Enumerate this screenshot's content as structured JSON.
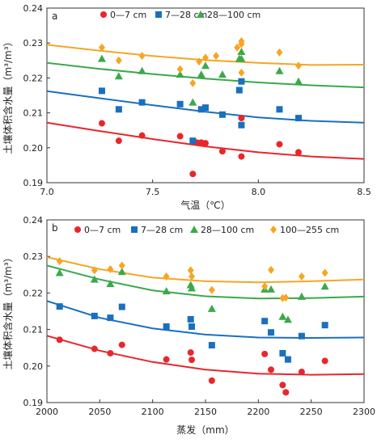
{
  "chart_data": [
    {
      "type": "scatter",
      "panel_label": "a",
      "xlabel": "气温（℃）",
      "ylabel": "土壤体积含水量（m³/m³）",
      "xlim": [
        7.0,
        8.5
      ],
      "ylim": [
        0.19,
        0.24
      ],
      "xticks": [
        "7.0",
        "7.5",
        "8.0",
        "8.5"
      ],
      "yticks": [
        "0.19",
        "0.20",
        "0.21",
        "0.22",
        "0.23",
        "0.24"
      ],
      "legend_position": "top-right",
      "series": [
        {
          "name": "0—7 cm",
          "marker": "circle",
          "color": "#e8262b",
          "points": [
            [
              7.26,
              0.207
            ],
            [
              7.34,
              0.202
            ],
            [
              7.45,
              0.2035
            ],
            [
              7.63,
              0.2033
            ],
            [
              7.71,
              0.2015
            ],
            [
              7.73,
              0.2015
            ],
            [
              7.75,
              0.2013
            ],
            [
              7.69,
              0.1925
            ],
            [
              7.83,
              0.199
            ],
            [
              7.92,
              0.2085
            ],
            [
              7.92,
              0.1975
            ],
            [
              8.1,
              0.201
            ],
            [
              8.19,
              0.1987
            ]
          ],
          "trend": [
            [
              7.0,
              0.2072
            ],
            [
              7.25,
              0.2048
            ],
            [
              7.5,
              0.2025
            ],
            [
              7.75,
              0.2004
            ],
            [
              8.0,
              0.1987
            ],
            [
              8.25,
              0.1975
            ],
            [
              8.5,
              0.1968
            ]
          ]
        },
        {
          "name": "7—28 cm",
          "marker": "square",
          "color": "#1a6fbf",
          "points": [
            [
              7.26,
              0.2163
            ],
            [
              7.34,
              0.211
            ],
            [
              7.45,
              0.213
            ],
            [
              7.63,
              0.2125
            ],
            [
              7.69,
              0.202
            ],
            [
              7.73,
              0.211
            ],
            [
              7.75,
              0.2115
            ],
            [
              7.83,
              0.2095
            ],
            [
              7.91,
              0.2165
            ],
            [
              7.92,
              0.219
            ],
            [
              7.92,
              0.2065
            ],
            [
              8.1,
              0.211
            ],
            [
              8.19,
              0.2085
            ]
          ],
          "trend": [
            [
              7.0,
              0.2162
            ],
            [
              7.25,
              0.2142
            ],
            [
              7.5,
              0.2122
            ],
            [
              7.75,
              0.2103
            ],
            [
              8.0,
              0.2087
            ],
            [
              8.25,
              0.2077
            ],
            [
              8.5,
              0.2072
            ]
          ]
        },
        {
          "name": "28—100 cm",
          "marker": "triangle",
          "color": "#3aa94a",
          "points": [
            [
              7.26,
              0.2255
            ],
            [
              7.34,
              0.2205
            ],
            [
              7.45,
              0.222
            ],
            [
              7.63,
              0.221
            ],
            [
              7.69,
              0.213
            ],
            [
              7.73,
              0.221
            ],
            [
              7.75,
              0.2235
            ],
            [
              7.83,
              0.221
            ],
            [
              7.91,
              0.2255
            ],
            [
              7.92,
              0.2275
            ],
            [
              7.92,
              0.2255
            ],
            [
              8.1,
              0.222
            ],
            [
              8.19,
              0.219
            ]
          ],
          "trend": [
            [
              7.0,
              0.2243
            ],
            [
              7.25,
              0.2226
            ],
            [
              7.5,
              0.2211
            ],
            [
              7.75,
              0.2198
            ],
            [
              8.0,
              0.2187
            ],
            [
              8.25,
              0.2179
            ],
            [
              8.5,
              0.2173
            ]
          ]
        },
        {
          "name": "",
          "marker": "diamond",
          "color": "#f5a623",
          "points": [
            [
              7.26,
              0.2287
            ],
            [
              7.34,
              0.225
            ],
            [
              7.45,
              0.2263
            ],
            [
              7.63,
              0.2225
            ],
            [
              7.69,
              0.2185
            ],
            [
              7.72,
              0.2247
            ],
            [
              7.75,
              0.2258
            ],
            [
              7.8,
              0.2263
            ],
            [
              7.9,
              0.2287
            ],
            [
              7.92,
              0.2305
            ],
            [
              7.92,
              0.2297
            ],
            [
              7.92,
              0.2215
            ],
            [
              8.1,
              0.2273
            ],
            [
              8.19,
              0.2235
            ]
          ],
          "trend": [
            [
              7.0,
              0.2295
            ],
            [
              7.25,
              0.2278
            ],
            [
              7.5,
              0.2263
            ],
            [
              7.75,
              0.2251
            ],
            [
              8.0,
              0.2243
            ],
            [
              8.25,
              0.2237
            ],
            [
              8.5,
              0.2238
            ]
          ]
        }
      ]
    },
    {
      "type": "scatter",
      "panel_label": "b",
      "xlabel": "蒸发（mm）",
      "ylabel": "土壤体积含水量（m³/m³）",
      "xlim": [
        2000,
        2300
      ],
      "ylim": [
        0.19,
        0.24
      ],
      "xticks": [
        "2000",
        "2050",
        "2100",
        "2150",
        "2200",
        "2250",
        "2300"
      ],
      "yticks": [
        "0.19",
        "0.20",
        "0.21",
        "0.22",
        "0.23",
        "0.24"
      ],
      "legend_position": "top-right",
      "series": [
        {
          "name": "0—7 cm",
          "marker": "circle",
          "color": "#e8262b",
          "points": [
            [
              2012,
              0.2072
            ],
            [
              2045,
              0.2047
            ],
            [
              2060,
              0.2035
            ],
            [
              2071,
              0.2058
            ],
            [
              2113,
              0.2018
            ],
            [
              2136,
              0.2037
            ],
            [
              2137,
              0.2017
            ],
            [
              2156,
              0.196
            ],
            [
              2206,
              0.2033
            ],
            [
              2212,
              0.199
            ],
            [
              2223,
              0.1948
            ],
            [
              2226,
              0.1928
            ],
            [
              2241,
              0.1984
            ],
            [
              2263,
              0.2014
            ]
          ],
          "trend": [
            [
              2000,
              0.2083
            ],
            [
              2050,
              0.2042
            ],
            [
              2100,
              0.2011
            ],
            [
              2150,
              0.199
            ],
            [
              2200,
              0.1979
            ],
            [
              2250,
              0.1976
            ],
            [
              2300,
              0.1978
            ]
          ]
        },
        {
          "name": "7—28 cm",
          "marker": "square",
          "color": "#1a6fbf",
          "points": [
            [
              2012,
              0.2163
            ],
            [
              2045,
              0.2137
            ],
            [
              2060,
              0.2132
            ],
            [
              2071,
              0.2162
            ],
            [
              2113,
              0.2108
            ],
            [
              2136,
              0.2128
            ],
            [
              2137,
              0.2108
            ],
            [
              2156,
              0.2057
            ],
            [
              2206,
              0.2123
            ],
            [
              2212,
              0.2092
            ],
            [
              2223,
              0.2035
            ],
            [
              2228,
              0.2018
            ],
            [
              2241,
              0.2082
            ],
            [
              2263,
              0.2112
            ]
          ],
          "trend": [
            [
              2000,
              0.2178
            ],
            [
              2050,
              0.2132
            ],
            [
              2100,
              0.2103
            ],
            [
              2150,
              0.2086
            ],
            [
              2200,
              0.2078
            ],
            [
              2250,
              0.2077
            ],
            [
              2300,
              0.2078
            ]
          ]
        },
        {
          "name": "28—100 cm",
          "marker": "triangle",
          "color": "#3aa94a",
          "points": [
            [
              2012,
              0.2255
            ],
            [
              2045,
              0.2237
            ],
            [
              2060,
              0.2225
            ],
            [
              2071,
              0.2258
            ],
            [
              2113,
              0.2205
            ],
            [
              2136,
              0.2222
            ],
            [
              2137,
              0.2213
            ],
            [
              2156,
              0.2157
            ],
            [
              2206,
              0.221
            ],
            [
              2212,
              0.221
            ],
            [
              2223,
              0.2135
            ],
            [
              2228,
              0.2127
            ],
            [
              2241,
              0.219
            ],
            [
              2263,
              0.2218
            ]
          ],
          "trend": [
            [
              2000,
              0.2275
            ],
            [
              2050,
              0.2237
            ],
            [
              2100,
              0.2207
            ],
            [
              2150,
              0.2191
            ],
            [
              2200,
              0.2185
            ],
            [
              2250,
              0.2186
            ],
            [
              2300,
              0.219
            ]
          ]
        },
        {
          "name": "100—255 cm",
          "marker": "diamond",
          "color": "#f5a623",
          "points": [
            [
              2012,
              0.2287
            ],
            [
              2045,
              0.2262
            ],
            [
              2060,
              0.2265
            ],
            [
              2071,
              0.2275
            ],
            [
              2113,
              0.2245
            ],
            [
              2136,
              0.2262
            ],
            [
              2137,
              0.2245
            ],
            [
              2156,
              0.2208
            ],
            [
              2206,
              0.2218
            ],
            [
              2212,
              0.2263
            ],
            [
              2223,
              0.2186
            ],
            [
              2226,
              0.2187
            ],
            [
              2241,
              0.2245
            ],
            [
              2263,
              0.2255
            ]
          ],
          "trend": [
            [
              2000,
              0.2298
            ],
            [
              2050,
              0.2265
            ],
            [
              2100,
              0.2242
            ],
            [
              2150,
              0.2232
            ],
            [
              2200,
              0.2229
            ],
            [
              2250,
              0.2232
            ],
            [
              2300,
              0.2237
            ]
          ]
        }
      ]
    }
  ]
}
